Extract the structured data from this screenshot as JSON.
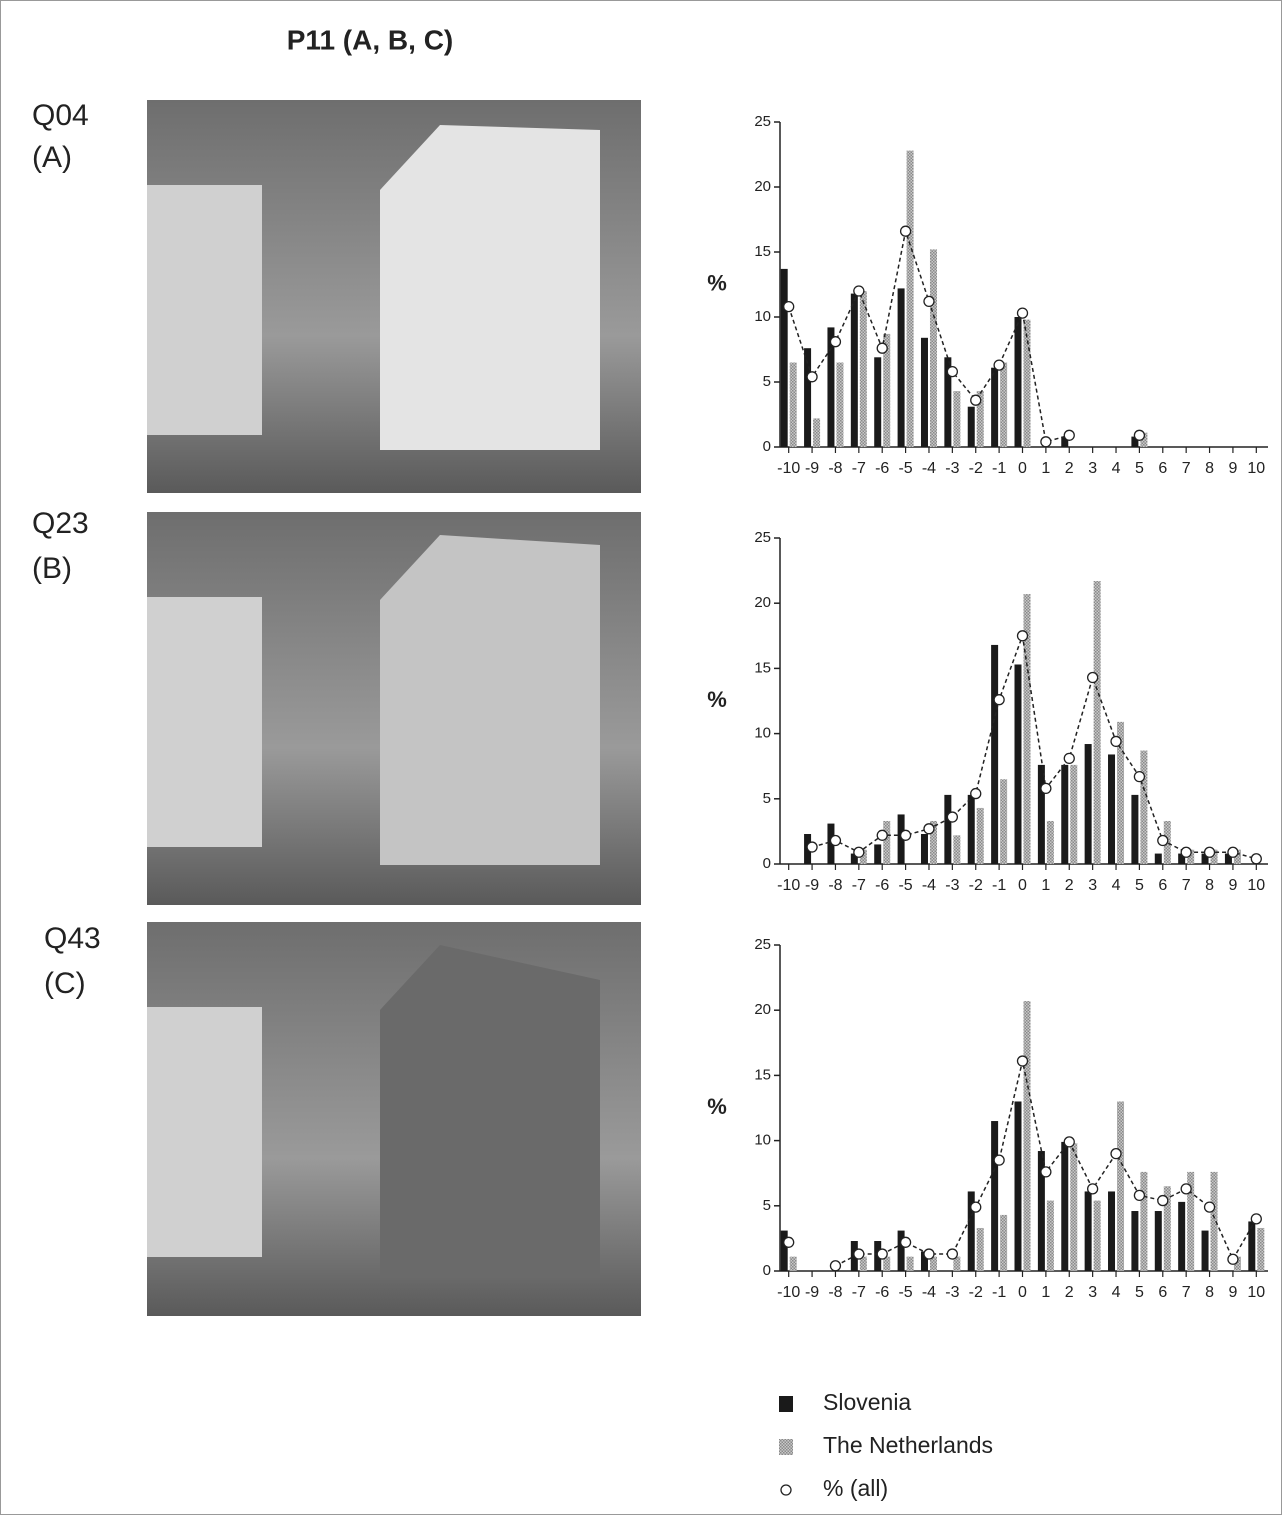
{
  "title": "P11 (A, B, C)",
  "panels": [
    {
      "label": "Q04",
      "sublabel": "(A)"
    },
    {
      "label": "Q23",
      "sublabel": "(B)"
    },
    {
      "label": "Q43",
      "sublabel": "(C)"
    }
  ],
  "chart_data": [
    {
      "type": "bar",
      "ylabel": "%",
      "categories": [
        "-10",
        "-9",
        "-8",
        "-7",
        "-6",
        "-5",
        "-4",
        "-3",
        "-2",
        "-1",
        "0",
        "1",
        "2",
        "3",
        "4",
        "5",
        "6",
        "7",
        "8",
        "9",
        "10"
      ],
      "ylim": [
        0,
        25
      ],
      "yticks": [
        0,
        5,
        10,
        15,
        20,
        25
      ],
      "series": [
        {
          "name": "Slovenia",
          "color": "#1a1a1a",
          "values": [
            13.7,
            7.6,
            9.2,
            11.8,
            6.9,
            12.2,
            8.4,
            6.9,
            3.1,
            6.1,
            10.0,
            0,
            0.8,
            0,
            0,
            0.8,
            0,
            0,
            0,
            0,
            0
          ]
        },
        {
          "name": "The Netherlands",
          "color": "#a8a8a8",
          "values": [
            6.5,
            2.2,
            6.5,
            12.0,
            8.7,
            22.8,
            15.2,
            4.3,
            4.3,
            6.5,
            9.8,
            0,
            0,
            0,
            0,
            1.1,
            0,
            0,
            0,
            0,
            0
          ]
        },
        {
          "name": "% (all)",
          "type": "line",
          "color": "#222222",
          "values": [
            10.8,
            5.4,
            8.1,
            12.0,
            7.6,
            16.6,
            11.2,
            5.8,
            3.6,
            6.3,
            10.3,
            0.4,
            0.9,
            null,
            null,
            0.9,
            null,
            null,
            null,
            null,
            null
          ]
        }
      ]
    },
    {
      "type": "bar",
      "ylabel": "%",
      "categories": [
        "-10",
        "-9",
        "-8",
        "-7",
        "-6",
        "-5",
        "-4",
        "-3",
        "-2",
        "-1",
        "0",
        "1",
        "2",
        "3",
        "4",
        "5",
        "6",
        "7",
        "8",
        "9",
        "10"
      ],
      "ylim": [
        0,
        25
      ],
      "yticks": [
        0,
        5,
        10,
        15,
        20,
        25
      ],
      "series": [
        {
          "name": "Slovenia",
          "color": "#1a1a1a",
          "values": [
            0,
            2.3,
            3.1,
            0.8,
            1.5,
            3.8,
            2.3,
            5.3,
            5.3,
            16.8,
            15.3,
            7.6,
            7.6,
            9.2,
            8.4,
            5.3,
            0.8,
            0.8,
            0.8,
            0.8,
            0
          ]
        },
        {
          "name": "The Netherlands",
          "color": "#a8a8a8",
          "values": [
            0,
            0,
            0,
            1.1,
            3.3,
            0,
            3.3,
            2.2,
            4.3,
            6.5,
            20.7,
            3.3,
            7.6,
            21.7,
            10.9,
            8.7,
            3.3,
            1.1,
            1.1,
            1.1,
            0
          ]
        },
        {
          "name": "% (all)",
          "type": "line",
          "color": "#222222",
          "values": [
            null,
            1.3,
            1.8,
            0.9,
            2.2,
            2.2,
            2.7,
            3.6,
            5.4,
            12.6,
            17.5,
            5.8,
            8.1,
            14.3,
            9.4,
            6.7,
            1.8,
            0.9,
            0.9,
            0.9,
            0.4
          ]
        }
      ]
    },
    {
      "type": "bar",
      "ylabel": "%",
      "categories": [
        "-10",
        "-9",
        "-8",
        "-7",
        "-6",
        "-5",
        "-4",
        "-3",
        "-2",
        "-1",
        "0",
        "1",
        "2",
        "3",
        "4",
        "5",
        "6",
        "7",
        "8",
        "9",
        "10"
      ],
      "ylim": [
        0,
        25
      ],
      "yticks": [
        0,
        5,
        10,
        15,
        20,
        25
      ],
      "series": [
        {
          "name": "Slovenia",
          "color": "#1a1a1a",
          "values": [
            3.1,
            0,
            0,
            2.3,
            2.3,
            3.1,
            1.5,
            0,
            6.1,
            11.5,
            13.0,
            9.2,
            9.9,
            6.1,
            6.1,
            4.6,
            4.6,
            5.3,
            3.1,
            0,
            3.8
          ]
        },
        {
          "name": "The Netherlands",
          "color": "#a8a8a8",
          "values": [
            1.1,
            0,
            0,
            1.1,
            1.1,
            1.1,
            1.1,
            1.1,
            3.3,
            4.3,
            20.7,
            5.4,
            9.8,
            5.4,
            13.0,
            7.6,
            6.5,
            7.6,
            7.6,
            1.1,
            3.3
          ]
        },
        {
          "name": "% (all)",
          "type": "line",
          "color": "#222222",
          "values": [
            2.2,
            null,
            0.4,
            1.3,
            1.3,
            2.2,
            1.3,
            1.3,
            4.9,
            8.5,
            16.1,
            7.6,
            9.9,
            6.3,
            9.0,
            5.8,
            5.4,
            6.3,
            4.9,
            0.9,
            4.0
          ]
        }
      ]
    }
  ]
}
